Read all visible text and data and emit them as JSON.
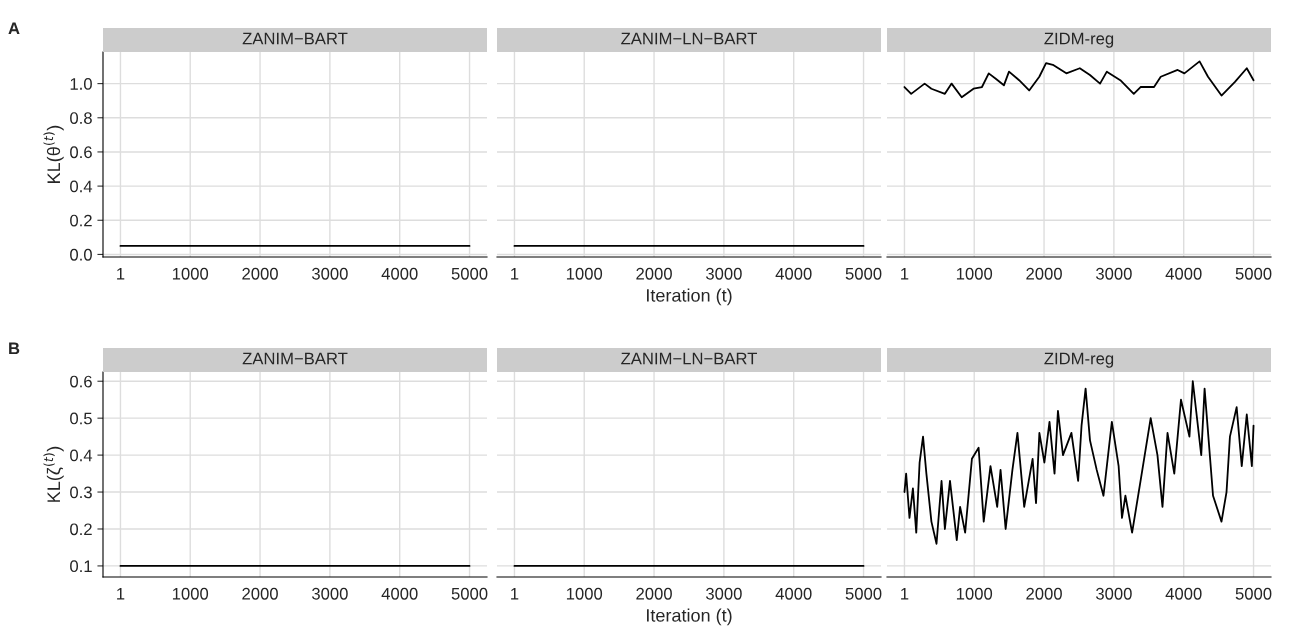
{
  "chart_data": [
    {
      "type": "line",
      "title": "ZANIM−BART",
      "ylabel": "KL(θ$^{(t)}$)",
      "annotations": [
        "A"
      ],
      "x": [
        1,
        1000,
        2000,
        3000,
        4000,
        5000
      ],
      "series": [
        {
          "color": "#000000",
          "values": [
            0.05,
            0.05,
            0.05,
            0.05,
            0.05,
            0.05
          ]
        }
      ],
      "xlim": [
        -249,
        5250
      ],
      "ylim": [
        -0.015,
        1.185
      ],
      "xticks": [
        1,
        1000,
        2000,
        3000,
        4000,
        5000
      ],
      "yticks": [
        {
          "value": 0,
          "label": "0.0"
        },
        0.2,
        0.4,
        0.6,
        0.8,
        {
          "value": 1,
          "label": "1.0"
        }
      ],
      "grid": true
    },
    {
      "type": "line",
      "title": "ZANIM−LN−BART",
      "xlabel": "Iteration (t)",
      "x": [
        1,
        1000,
        2000,
        3000,
        4000,
        5000
      ],
      "series": [
        {
          "color": "#000000",
          "values": [
            0.05,
            0.05,
            0.05,
            0.05,
            0.05,
            0.05
          ]
        }
      ],
      "xlim": [
        -249,
        5250
      ],
      "ylim": [
        -0.015,
        1.185
      ],
      "xticks": [
        1,
        1000,
        2000,
        3000,
        4000,
        5000
      ],
      "yticks": [
        0,
        0.2,
        0.4,
        0.6,
        0.8,
        1
      ],
      "tick_labels": "x",
      "grid": true
    },
    {
      "type": "line",
      "title": "ZIDM-reg",
      "x": [
        1,
        97,
        290,
        387,
        580,
        676,
        821,
        990,
        1111,
        1208,
        1304,
        1425,
        1498,
        1643,
        1787,
        1932,
        2029,
        2126,
        2319,
        2512,
        2657,
        2802,
        2899,
        3092,
        3285,
        3382,
        3575,
        3671,
        3913,
        4010,
        4227,
        4348,
        4541,
        4734,
        4903,
        5000
      ],
      "series": [
        {
          "color": "#000000",
          "values": [
            0.98,
            0.94,
            1.0,
            0.97,
            0.94,
            1.0,
            0.92,
            0.97,
            0.98,
            1.06,
            1.03,
            0.99,
            1.07,
            1.02,
            0.96,
            1.04,
            1.12,
            1.11,
            1.06,
            1.09,
            1.05,
            1.0,
            1.07,
            1.02,
            0.94,
            0.98,
            0.98,
            1.04,
            1.08,
            1.06,
            1.13,
            1.04,
            0.93,
            1.01,
            1.09,
            1.02
          ]
        }
      ],
      "xlim": [
        -249,
        5250
      ],
      "ylim": [
        -0.015,
        1.185
      ],
      "xticks": [
        1,
        1000,
        2000,
        3000,
        4000,
        5000
      ],
      "yticks": [
        0,
        0.2,
        0.4,
        0.6,
        0.8,
        1
      ],
      "tick_labels": "x",
      "grid": true
    },
    {
      "type": "line",
      "title": "ZANIM−BART",
      "ylabel": "KL(ζ$^{(t)}$)",
      "annotations": [
        "B"
      ],
      "x": [
        1,
        1000,
        2000,
        3000,
        4000,
        5000
      ],
      "series": [
        {
          "color": "#000000",
          "values": [
            0.1,
            0.1,
            0.1,
            0.1,
            0.1,
            0.1
          ]
        }
      ],
      "xlim": [
        -249,
        5250
      ],
      "ylim": [
        0.07,
        0.625
      ],
      "xticks": [
        1,
        1000,
        2000,
        3000,
        4000,
        5000
      ],
      "yticks": [
        0.1,
        0.2,
        0.3,
        0.4,
        0.5,
        0.6
      ],
      "grid": true
    },
    {
      "type": "line",
      "title": "ZANIM−LN−BART",
      "xlabel": "Iteration (t)",
      "x": [
        1,
        1000,
        2000,
        3000,
        4000,
        5000
      ],
      "series": [
        {
          "color": "#000000",
          "values": [
            0.1,
            0.1,
            0.1,
            0.1,
            0.1,
            0.1
          ]
        }
      ],
      "xlim": [
        -249,
        5250
      ],
      "ylim": [
        0.07,
        0.625
      ],
      "xticks": [
        1,
        1000,
        2000,
        3000,
        4000,
        5000
      ],
      "yticks": [
        0.1,
        0.2,
        0.3,
        0.4,
        0.5,
        0.6
      ],
      "tick_labels": "x",
      "grid": true
    },
    {
      "type": "line",
      "title": "ZIDM-reg",
      "x": [
        1,
        25,
        73,
        122,
        170,
        218,
        267,
        315,
        387,
        460,
        532,
        580,
        653,
        750,
        798,
        870,
        967,
        1063,
        1136,
        1233,
        1329,
        1377,
        1450,
        1547,
        1619,
        1716,
        1836,
        1885,
        1933,
        2005,
        2078,
        2150,
        2199,
        2271,
        2392,
        2488,
        2537,
        2595,
        2658,
        2754,
        2851,
        2971,
        3068,
        3116,
        3165,
        3261,
        3382,
        3527,
        3624,
        3696,
        3768,
        3865,
        3961,
        4082,
        4130,
        4251,
        4299,
        4420,
        4541,
        4613,
        4662,
        4758,
        4831,
        4903,
        4976,
        5000
      ],
      "series": [
        {
          "color": "#000000",
          "values": [
            0.3,
            0.35,
            0.23,
            0.31,
            0.19,
            0.38,
            0.45,
            0.35,
            0.22,
            0.16,
            0.33,
            0.2,
            0.33,
            0.17,
            0.26,
            0.19,
            0.39,
            0.42,
            0.22,
            0.37,
            0.26,
            0.36,
            0.2,
            0.36,
            0.46,
            0.26,
            0.39,
            0.27,
            0.46,
            0.38,
            0.49,
            0.35,
            0.52,
            0.4,
            0.46,
            0.33,
            0.48,
            0.58,
            0.44,
            0.36,
            0.29,
            0.49,
            0.37,
            0.23,
            0.29,
            0.19,
            0.33,
            0.5,
            0.4,
            0.26,
            0.46,
            0.35,
            0.55,
            0.45,
            0.6,
            0.4,
            0.58,
            0.29,
            0.22,
            0.3,
            0.45,
            0.53,
            0.37,
            0.51,
            0.37,
            0.48
          ]
        }
      ],
      "xlim": [
        -249,
        5250
      ],
      "ylim": [
        0.07,
        0.625
      ],
      "xticks": [
        1,
        1000,
        2000,
        3000,
        4000,
        5000
      ],
      "yticks": [
        0.1,
        0.2,
        0.3,
        0.4,
        0.5,
        0.6
      ],
      "tick_labels": "x",
      "grid": true
    }
  ]
}
